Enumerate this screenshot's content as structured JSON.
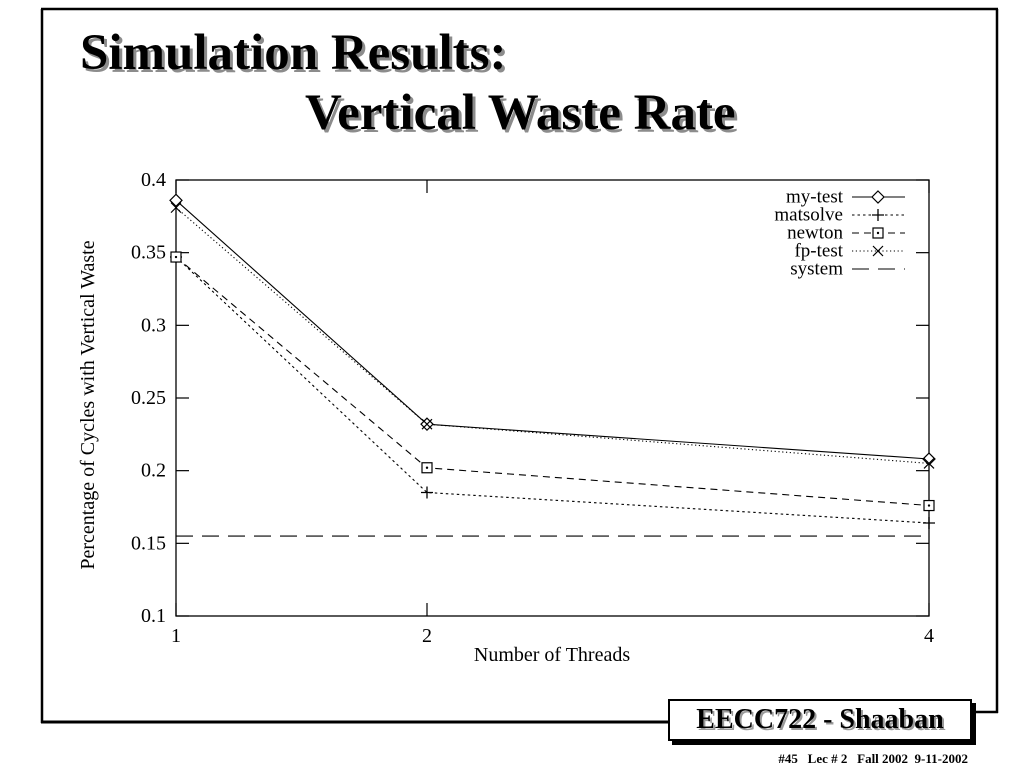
{
  "slide": {
    "title_line1": "Simulation Results:",
    "title_line2": "Vertical Waste Rate",
    "footer_box_label": "EECC722 - Shaaban",
    "footer_info": "#45   Lec # 2   Fall 2002  9-11-2002"
  },
  "chart_data": {
    "type": "line",
    "x": [
      1,
      2,
      4
    ],
    "xlabel": "Number of Threads",
    "ylabel": "Percentage of Cycles with Vertical Waste",
    "xlim": [
      1,
      4
    ],
    "ylim": [
      0.1,
      0.4
    ],
    "xticks": [
      "1",
      "2",
      "4"
    ],
    "yticks": [
      "0.4",
      "0.35",
      "0.3",
      "0.25",
      "0.2",
      "0.15",
      "0.1"
    ],
    "grid": false,
    "legend_position": "top-right",
    "series": [
      {
        "name": "my-test",
        "values": [
          0.386,
          0.232,
          0.208
        ],
        "line_style": "solid",
        "marker": "diamond"
      },
      {
        "name": "matsolve",
        "values": [
          0.347,
          0.185,
          0.164
        ],
        "line_style": "short-dash",
        "marker": "plus"
      },
      {
        "name": "newton",
        "values": [
          0.347,
          0.202,
          0.176
        ],
        "line_style": "dashed",
        "marker": "square"
      },
      {
        "name": "fp-test",
        "values": [
          0.381,
          0.232,
          0.205
        ],
        "line_style": "dotted",
        "marker": "cross"
      },
      {
        "name": "system",
        "values": [
          0.155,
          0.155,
          0.155
        ],
        "line_style": "long-dash",
        "marker": "none"
      }
    ]
  }
}
